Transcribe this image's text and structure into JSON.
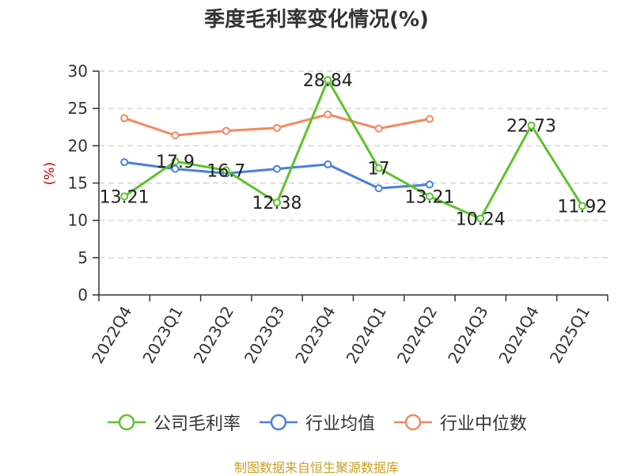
{
  "title": "季度毛利率变化情况(%)",
  "footer": "制图数据来自恒生聚源数据库",
  "colors": {
    "company": "#5cc42a",
    "industry_avg": "#4a7fdb",
    "industry_median": "#f4895f",
    "axis": "#333333",
    "grid": "#cccccc",
    "ylabel": "#cc0000"
  },
  "chart_data": {
    "type": "line",
    "title": "季度毛利率变化情况(%)",
    "xlabel": "",
    "ylabel": "(%)",
    "ylim": [
      0,
      30
    ],
    "yticks": [
      0,
      5,
      10,
      15,
      20,
      25,
      30
    ],
    "grid": true,
    "legend_position": "bottom",
    "categories": [
      "2022Q4",
      "2023Q1",
      "2023Q2",
      "2023Q3",
      "2023Q4",
      "2024Q1",
      "2024Q2",
      "2024Q3",
      "2024Q4",
      "2025Q1"
    ],
    "series": [
      {
        "name": "公司毛利率",
        "color": "#5cc42a",
        "values": [
          13.21,
          17.9,
          16.7,
          12.38,
          28.84,
          17,
          13.21,
          10.24,
          22.73,
          11.92
        ],
        "labels": [
          "13.21",
          "17.9",
          "16.7",
          "12.38",
          "28.84",
          "17",
          "13.21",
          "10.24",
          "22.73",
          "11.92"
        ]
      },
      {
        "name": "行业均值",
        "color": "#4a7fdb",
        "values": [
          17.8,
          16.9,
          16.3,
          16.9,
          17.5,
          14.3,
          14.8,
          null,
          null,
          null
        ]
      },
      {
        "name": "行业中位数",
        "color": "#f4895f",
        "values": [
          23.7,
          21.4,
          22.0,
          22.4,
          24.2,
          22.3,
          23.6,
          null,
          null,
          null
        ]
      }
    ]
  }
}
